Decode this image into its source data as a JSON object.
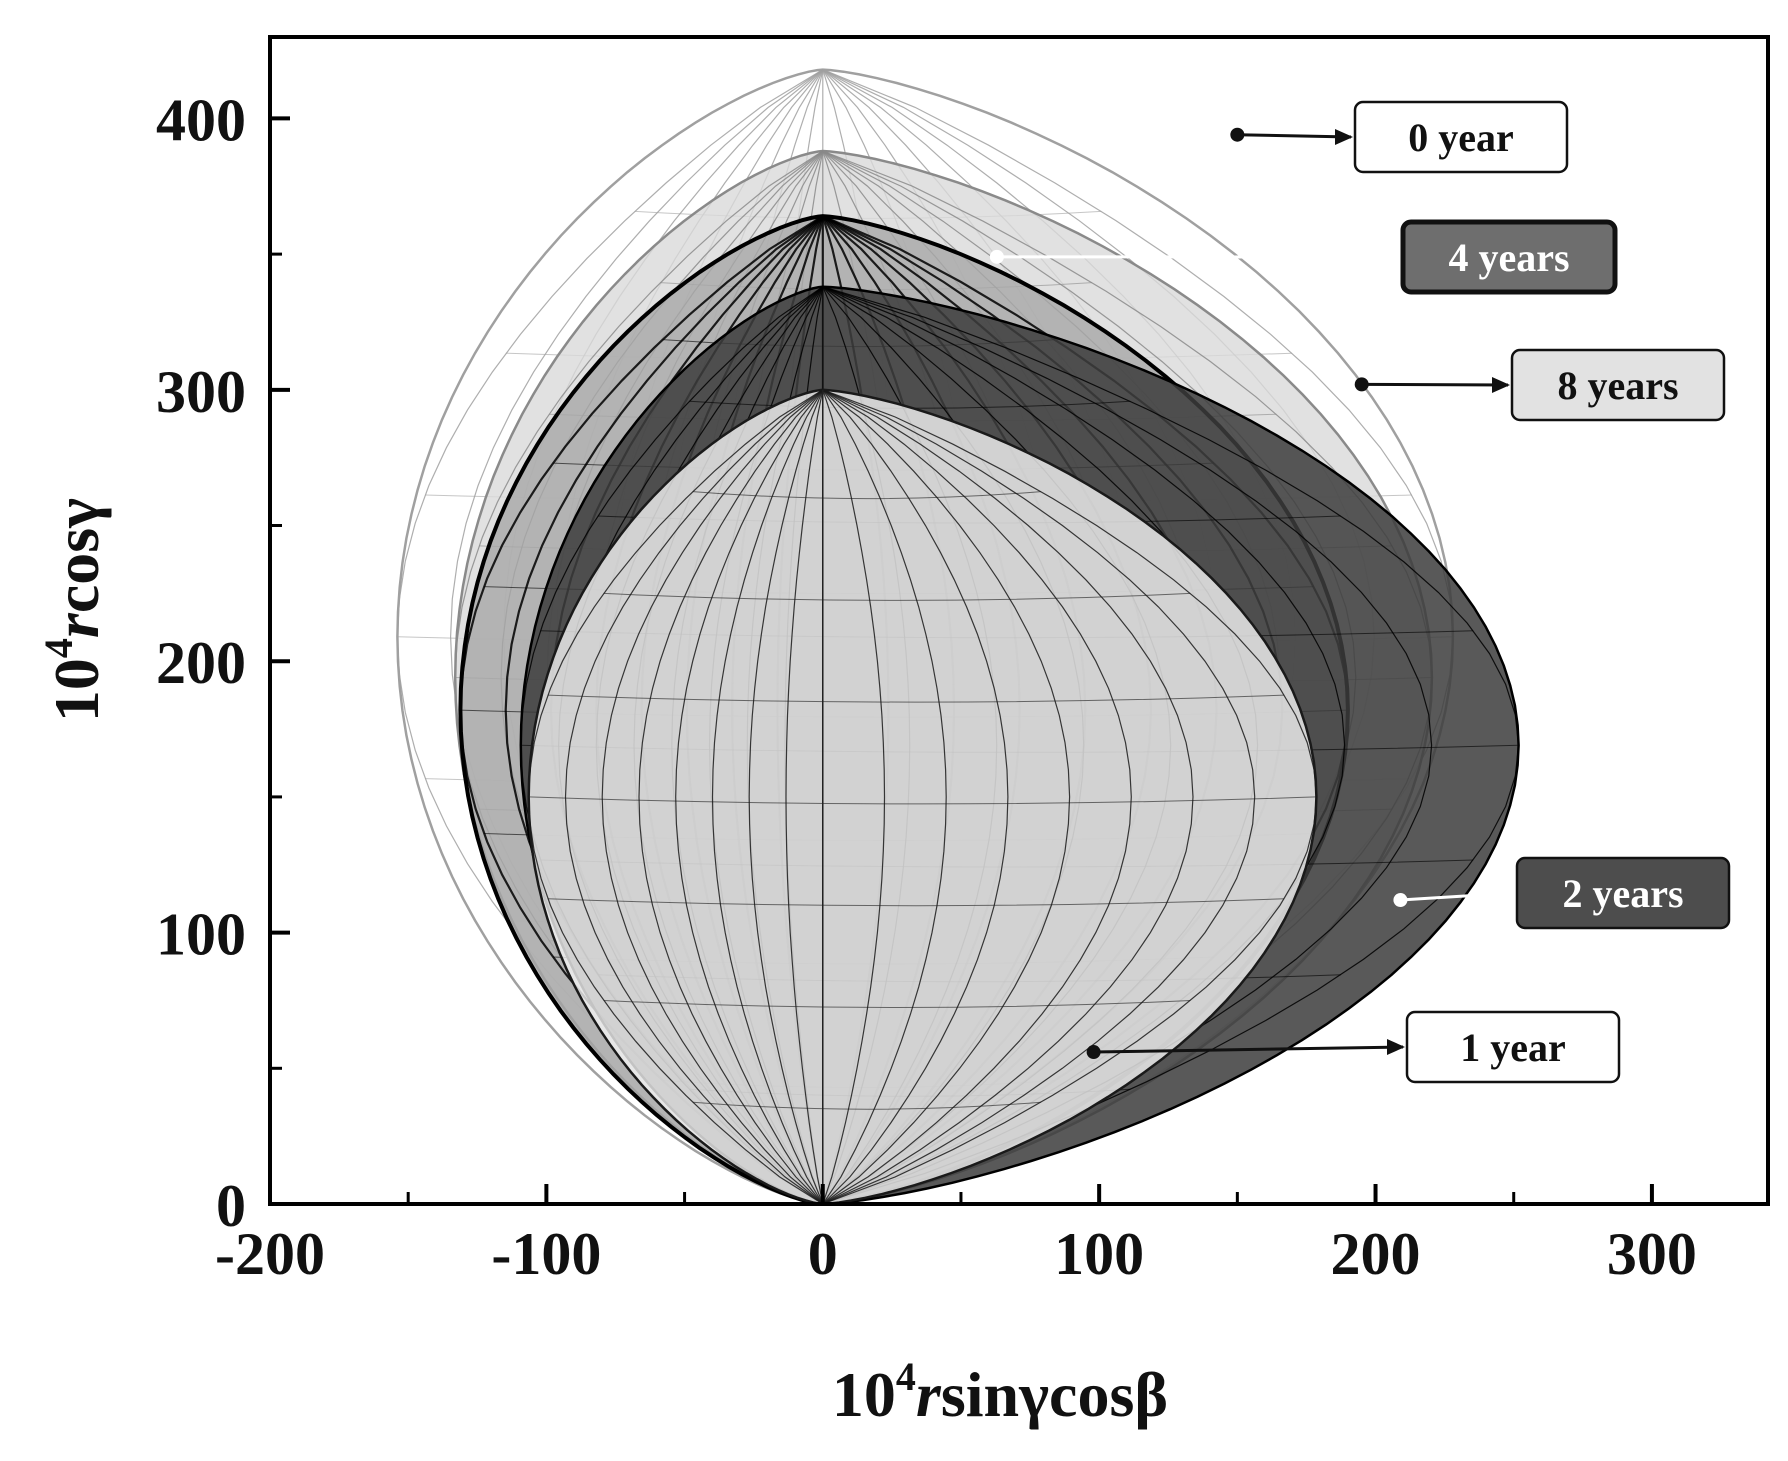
{
  "chart_data": {
    "type": "scatter",
    "xlabel": {
      "base": "10",
      "exp": "4",
      "var": "r",
      "rest": "sinγcosβ"
    },
    "ylabel": {
      "base": "10",
      "exp": "4",
      "var": "r",
      "rest": "cosγ"
    },
    "xlim": [
      -200,
      342
    ],
    "ylim": [
      0,
      430
    ],
    "xticks": [
      "-200",
      "-100",
      "0",
      "100",
      "200",
      "300"
    ],
    "yticks": [
      "0",
      "100",
      "200",
      "300",
      "400"
    ],
    "grid": false,
    "series": [
      {
        "name": "0 year",
        "peak_y": 418,
        "x_min": -162,
        "x_max": 240,
        "fill": "none",
        "stroke": "#a0a0a0",
        "label_color": "#111111",
        "box_color": "#ffffff",
        "pointer": [
          150,
          394
        ]
      },
      {
        "name": "8 years",
        "peak_y": 388,
        "x_min": -140,
        "x_max": 232,
        "fill": "#d9d9d9",
        "stroke": "#8a8a8a",
        "label_color": "#111111",
        "box_color": "#e2e2e2",
        "pointer": [
          195,
          302
        ]
      },
      {
        "name": "4 years",
        "peak_y": 364,
        "x_min": -138,
        "x_max": 200,
        "fill": "#a8a8a8",
        "stroke": "#000000",
        "label_color": "#ffffff",
        "box_color": "#6e6e6e",
        "pointer": [
          63,
          349
        ]
      },
      {
        "name": "2 years",
        "peak_y": 338,
        "x_min": -115,
        "x_max": 265,
        "fill": "#3c3c3c",
        "stroke": "#000000",
        "label_color": "#ffffff",
        "box_color": "#4d4d4d",
        "pointer": [
          209,
          112
        ]
      },
      {
        "name": "1 year",
        "peak_y": 300,
        "x_min": -112,
        "x_max": 188,
        "fill": "#f4f4f4",
        "stroke": "#1a1a1a",
        "label_color": "#111111",
        "box_color": "#ffffff",
        "pointer": [
          98,
          56
        ]
      }
    ]
  }
}
